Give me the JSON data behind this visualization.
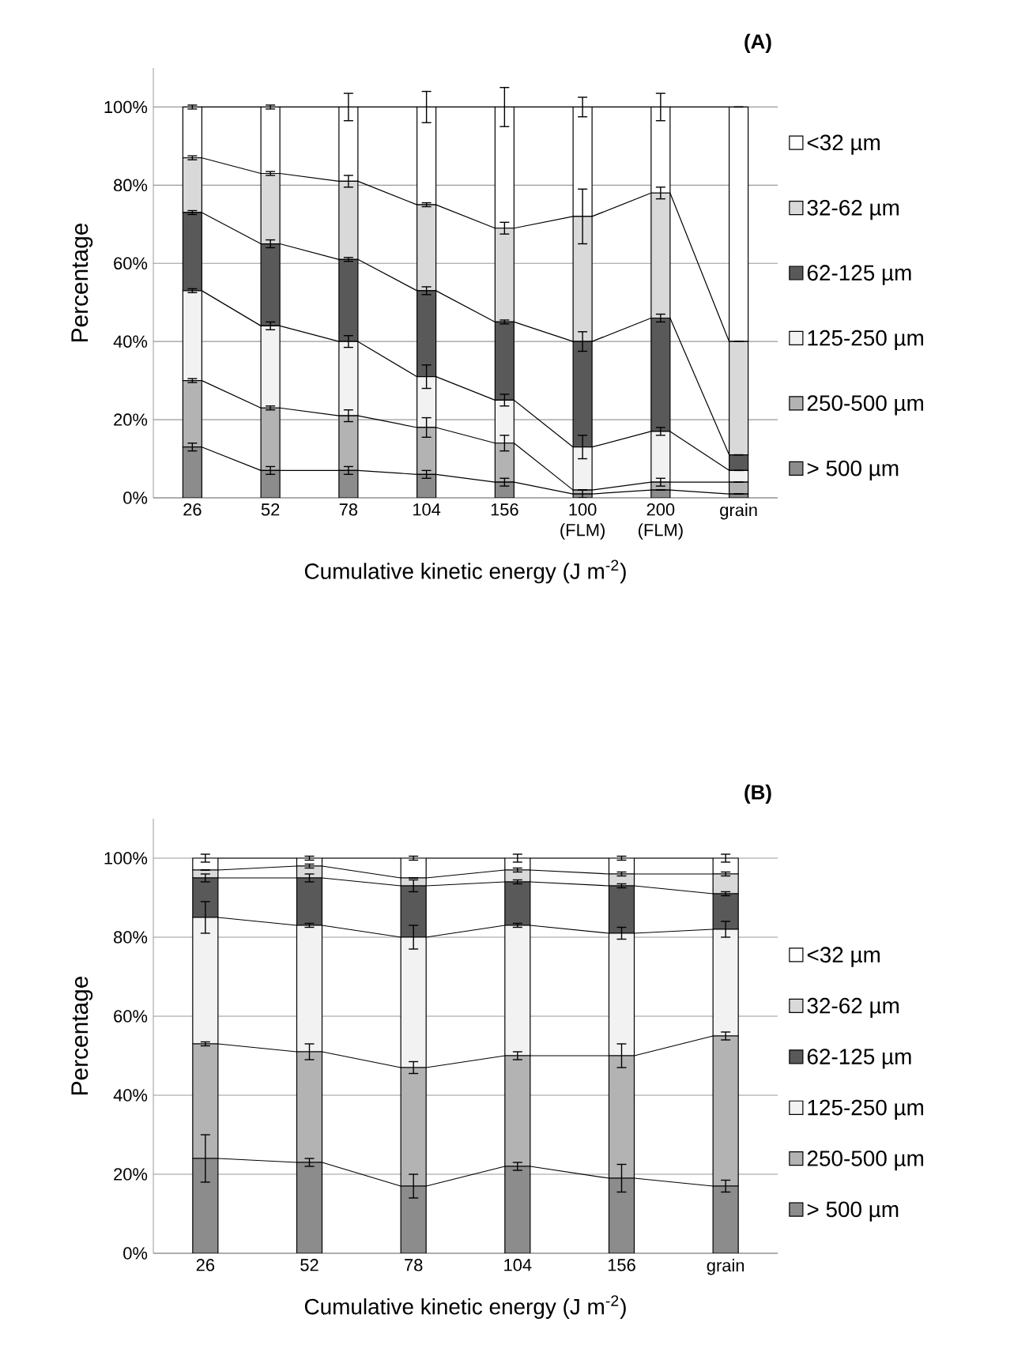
{
  "chart_data": [
    {
      "type": "bar",
      "title": "(A)",
      "xlabel": "Cumulative kinetic energy (J m$^{-2}$)",
      "ylabel": "Percentage",
      "categories": [
        "26",
        "52",
        "78",
        "104",
        "156",
        "100 (FLM)",
        "200 (FLM)",
        "grain"
      ],
      "stacked": true,
      "grid": "y",
      "legend": "right",
      "ylim": [
        0,
        110
      ],
      "yticks": [
        {
          "value": 0,
          "label": "0%"
        },
        {
          "value": 20,
          "label": "20%"
        },
        {
          "value": 40,
          "label": "40%"
        },
        {
          "value": 60,
          "label": "60%"
        },
        {
          "value": 80,
          "label": "80%"
        },
        {
          "value": 100,
          "label": "100%"
        }
      ],
      "series": [
        {
          "name": "> 500 µm",
          "color": "#8c8c8c",
          "values": [
            13,
            7,
            7,
            6,
            4,
            1,
            2,
            1
          ],
          "errors": [
            1,
            1,
            1,
            1,
            1,
            1,
            null,
            null
          ]
        },
        {
          "name": "250-500 µm",
          "color": "#b3b3b3",
          "values": [
            17,
            16,
            14,
            12,
            10,
            1,
            2,
            3
          ],
          "errors": [
            0.5,
            0.5,
            1.5,
            2.5,
            2,
            null,
            1,
            null
          ]
        },
        {
          "name": "125-250 µm",
          "color": "#f2f2f2",
          "values": [
            23,
            21,
            19,
            13,
            11,
            11,
            13,
            3
          ],
          "errors": [
            0.5,
            1,
            1.5,
            3,
            1.5,
            3,
            1,
            null
          ]
        },
        {
          "name": "62-125 µm",
          "color": "#595959",
          "values": [
            20,
            21,
            21,
            22,
            20,
            27,
            29,
            4
          ],
          "errors": [
            0.5,
            1,
            0.5,
            1,
            0.5,
            2.5,
            1,
            null
          ]
        },
        {
          "name": "32-62 µm",
          "color": "#d9d9d9",
          "values": [
            14,
            18,
            20,
            22,
            24,
            32,
            32,
            29
          ],
          "errors": [
            0.5,
            0.5,
            1.5,
            0.5,
            1.5,
            7,
            1.5,
            null
          ]
        },
        {
          "name": "<32 µm",
          "color": "#ffffff",
          "values": [
            13,
            17,
            19,
            25,
            31,
            28,
            22,
            60
          ],
          "errors": [
            0.5,
            0.5,
            3.5,
            4,
            5,
            2.5,
            3.5,
            null
          ]
        }
      ]
    },
    {
      "type": "bar",
      "title": "(B)",
      "xlabel": "Cumulative kinetic energy (J m$^{-2}$)",
      "ylabel": "Percentage",
      "categories": [
        "26",
        "52",
        "78",
        "104",
        "156",
        "grain"
      ],
      "stacked": true,
      "grid": "y",
      "legend": "right",
      "ylim": [
        0,
        110
      ],
      "yticks": [
        {
          "value": 0,
          "label": "0%"
        },
        {
          "value": 20,
          "label": "20%"
        },
        {
          "value": 40,
          "label": "40%"
        },
        {
          "value": 60,
          "label": "60%"
        },
        {
          "value": 80,
          "label": "80%"
        },
        {
          "value": 100,
          "label": "100%"
        }
      ],
      "series": [
        {
          "name": "> 500 µm",
          "color": "#8c8c8c",
          "values": [
            24,
            23,
            17,
            22,
            19,
            17
          ],
          "errors": [
            6,
            1,
            3,
            1,
            3.5,
            1.5
          ]
        },
        {
          "name": "250-500 µm",
          "color": "#b3b3b3",
          "values": [
            29,
            28,
            30,
            28,
            31,
            38
          ],
          "errors": [
            0.5,
            2,
            1.5,
            1,
            3,
            1
          ]
        },
        {
          "name": "125-250 µm",
          "color": "#f2f2f2",
          "values": [
            32,
            32,
            33,
            33,
            31,
            27
          ],
          "errors": [
            4,
            0.5,
            3,
            0.5,
            1.5,
            2
          ]
        },
        {
          "name": "62-125 µm",
          "color": "#595959",
          "values": [
            10,
            12,
            13,
            11,
            12,
            9
          ],
          "errors": [
            1,
            1,
            1.5,
            0.5,
            0.5,
            0.5
          ]
        },
        {
          "name": "32-62 µm",
          "color": "#d9d9d9",
          "values": [
            2,
            3,
            2,
            3,
            3,
            5
          ],
          "errors": [
            null,
            0.5,
            null,
            0.5,
            0.5,
            0.5
          ]
        },
        {
          "name": "<32 µm",
          "color": "#ffffff",
          "values": [
            3,
            2,
            5,
            3,
            4,
            4
          ],
          "errors": [
            1,
            0.5,
            0.5,
            1,
            0.5,
            1
          ]
        }
      ]
    }
  ]
}
